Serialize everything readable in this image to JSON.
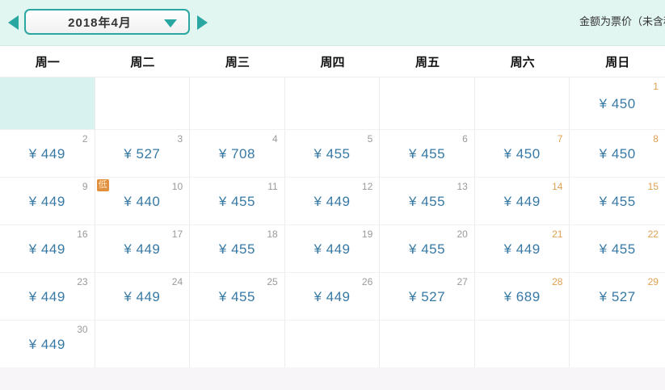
{
  "header": {
    "month_label": "2018年4月",
    "note": "金额为票价（未含税费）"
  },
  "weekdays": [
    "周一",
    "周二",
    "周三",
    "周四",
    "周五",
    "周六",
    "周日"
  ],
  "calendar": {
    "currency": "¥",
    "low_badge": "低",
    "cells": [
      {
        "highlight": true
      },
      {},
      {},
      {},
      {},
      {},
      {
        "day": "1",
        "price": "¥ 450",
        "weekend": true
      },
      {
        "day": "2",
        "price": "¥ 449"
      },
      {
        "day": "3",
        "price": "¥ 527"
      },
      {
        "day": "4",
        "price": "¥ 708"
      },
      {
        "day": "5",
        "price": "¥ 455"
      },
      {
        "day": "6",
        "price": "¥ 455"
      },
      {
        "day": "7",
        "price": "¥ 450",
        "weekend": true
      },
      {
        "day": "8",
        "price": "¥ 450",
        "weekend": true
      },
      {
        "day": "9",
        "price": "¥ 449"
      },
      {
        "day": "10",
        "price": "¥ 440",
        "badge": "低"
      },
      {
        "day": "11",
        "price": "¥ 455"
      },
      {
        "day": "12",
        "price": "¥ 449"
      },
      {
        "day": "13",
        "price": "¥ 455"
      },
      {
        "day": "14",
        "price": "¥ 449",
        "weekend": true
      },
      {
        "day": "15",
        "price": "¥ 455",
        "weekend": true
      },
      {
        "day": "16",
        "price": "¥ 449"
      },
      {
        "day": "17",
        "price": "¥ 449"
      },
      {
        "day": "18",
        "price": "¥ 455"
      },
      {
        "day": "19",
        "price": "¥ 449"
      },
      {
        "day": "20",
        "price": "¥ 455"
      },
      {
        "day": "21",
        "price": "¥ 449",
        "weekend": true
      },
      {
        "day": "22",
        "price": "¥ 455",
        "weekend": true
      },
      {
        "day": "23",
        "price": "¥ 449"
      },
      {
        "day": "24",
        "price": "¥ 449"
      },
      {
        "day": "25",
        "price": "¥ 455"
      },
      {
        "day": "26",
        "price": "¥ 449"
      },
      {
        "day": "27",
        "price": "¥ 527"
      },
      {
        "day": "28",
        "price": "¥ 689",
        "weekend": true
      },
      {
        "day": "29",
        "price": "¥ 527",
        "weekend": true
      },
      {
        "day": "30",
        "price": "¥ 449"
      },
      {},
      {},
      {},
      {},
      {},
      {}
    ]
  },
  "colors": {
    "teal": "#2aa7a0",
    "price_blue": "#3779a5",
    "weekend_orange": "#dfa052",
    "weekday_gray": "#9a9a9a",
    "badge_orange": "#e0903e",
    "header_bg": "#e1f5f1",
    "highlight_bg": "#d8f3ef"
  }
}
